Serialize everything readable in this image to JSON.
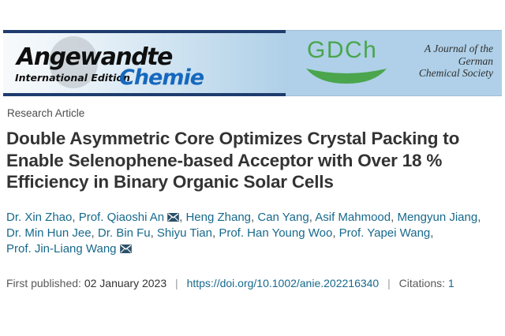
{
  "banner": {
    "angewandte": "Angewandte",
    "international_edition": "International Edition",
    "chemie": "Chemie",
    "gdch": "GDCh",
    "society": [
      "A Journal of the",
      "German",
      "Chemical Society"
    ]
  },
  "article": {
    "category": "Research Article",
    "title_lines": [
      "Double Asymmetric Core Optimizes Crystal Packing to",
      "Enable Selenophene-based Acceptor with Over 18 %",
      "Efficiency in Binary Organic Solar Cells"
    ]
  },
  "authors": {
    "lines": [
      [
        {
          "name": "Dr. Xin Zhao"
        },
        {
          "name": "Prof. Qiaoshi An",
          "envelope": true
        },
        {
          "name": "Heng Zhang"
        },
        {
          "name": "Can Yang"
        },
        {
          "name": "Asif Mahmood"
        },
        {
          "name": "Mengyun Jiang"
        }
      ],
      [
        {
          "name": "Dr. Min Hun Jee"
        },
        {
          "name": "Dr. Bin Fu"
        },
        {
          "name": "Shiyu Tian"
        },
        {
          "name": "Prof. Han Young Woo"
        },
        {
          "name": "Prof. Yapei Wang"
        }
      ],
      [
        {
          "name": "Prof. Jin-Liang Wang",
          "envelope": true
        }
      ]
    ]
  },
  "meta": {
    "published_label": "First published:",
    "published_date": "02 January 2023",
    "doi": "https://doi.org/10.1002/anie.202216340",
    "citations_label": "Citations:",
    "citations_count": "1",
    "separator": "|"
  },
  "colors": {
    "banner_blue": "#afd0e8",
    "navy_bar": "#1e3c6d",
    "chemie_blue": "#1668bd",
    "gdch_green": "#4aa54d",
    "link_teal": "#17698c",
    "title_gray": "#333333",
    "envelope_fill": "#2b5169"
  }
}
